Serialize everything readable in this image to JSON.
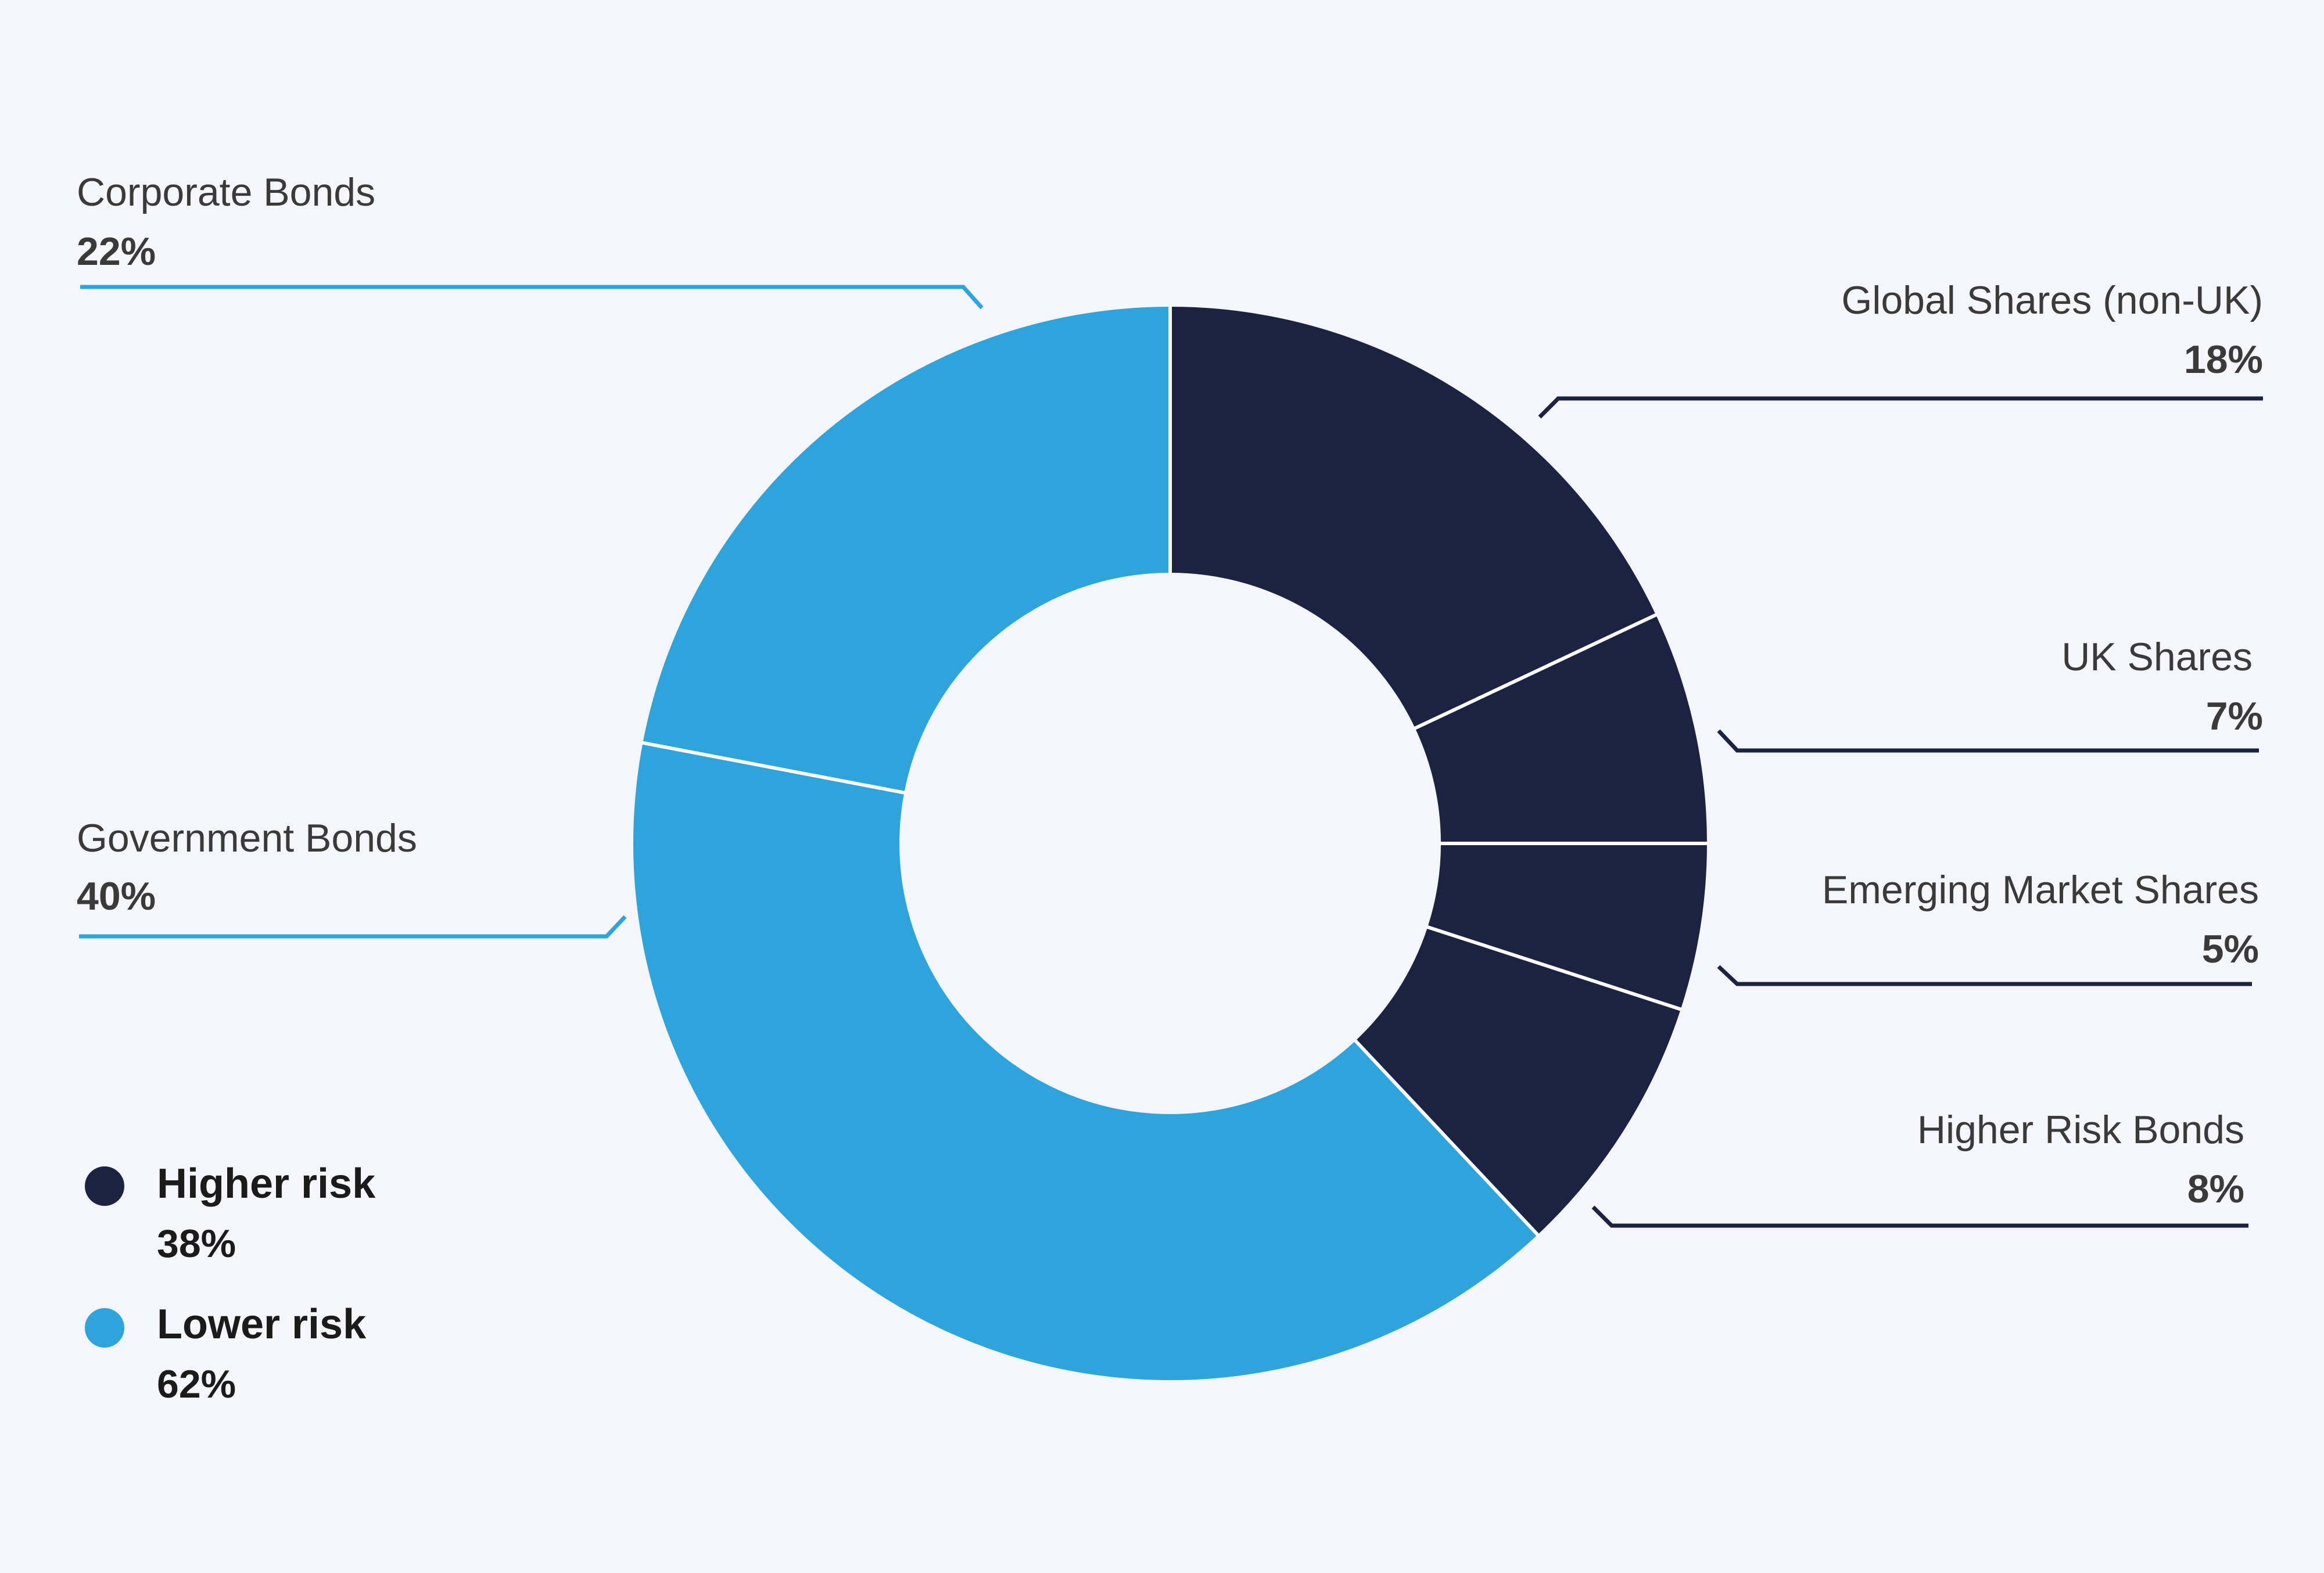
{
  "colors": {
    "higher_risk": "#1c2342",
    "lower_risk": "#2ea4dc",
    "background": "#f4f6fb"
  },
  "chart_data": {
    "type": "pie",
    "title": "",
    "categories": [
      "Global Shares (non-UK)",
      "UK Shares",
      "Emerging Market Shares",
      "Higher Risk Bonds",
      "Government Bonds",
      "Corporate Bonds"
    ],
    "values": [
      18,
      7,
      5,
      8,
      40,
      22
    ],
    "value_labels": [
      "18%",
      "7%",
      "5%",
      "8%",
      "40%",
      "22%"
    ],
    "risk_group": [
      "higher",
      "higher",
      "higher",
      "higher",
      "lower",
      "lower"
    ],
    "legend": {
      "placement": "bottom-left",
      "items": [
        {
          "name": "Higher risk",
          "value_label": "38%",
          "group": "higher"
        },
        {
          "name": "Lower risk",
          "value_label": "62%",
          "group": "lower"
        }
      ]
    }
  }
}
